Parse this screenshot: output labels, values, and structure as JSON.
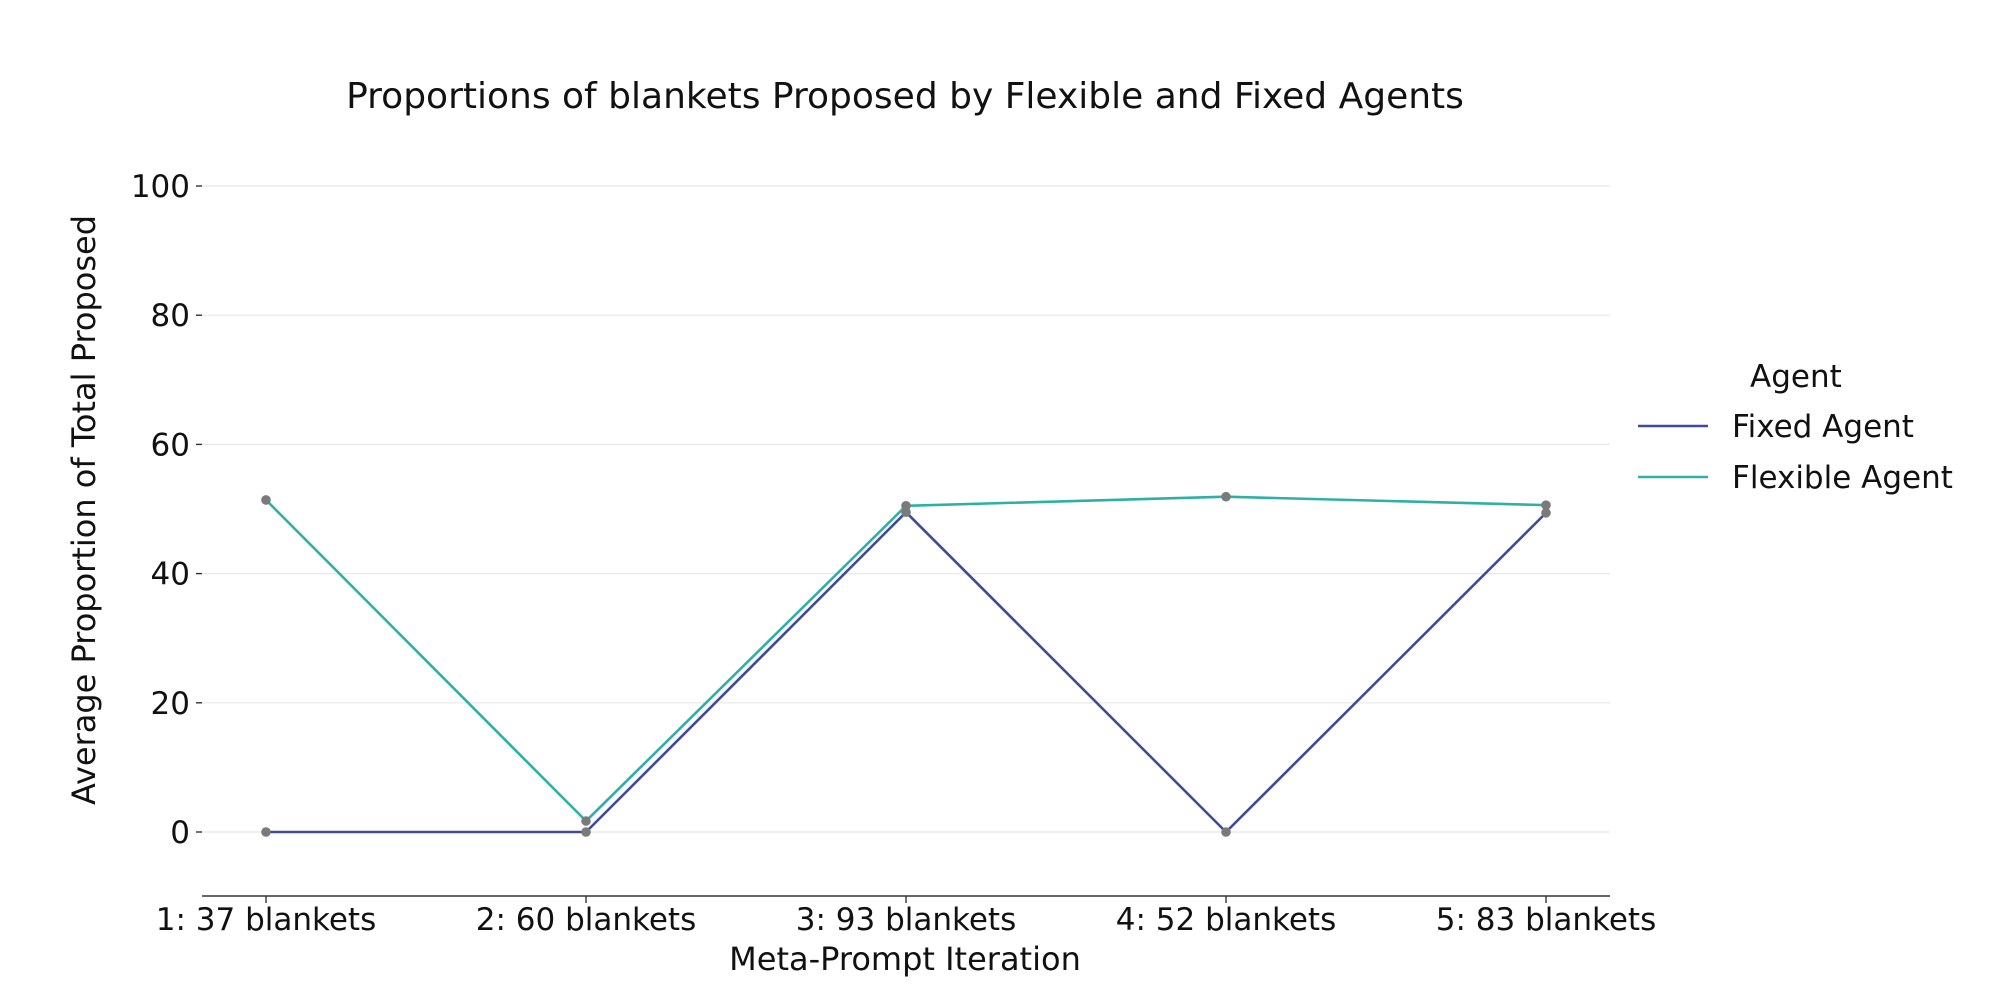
{
  "chart_data": {
    "type": "line",
    "title": "Proportions of blankets Proposed by Flexible and Fixed Agents",
    "xlabel": "Meta-Prompt Iteration",
    "ylabel": "Average Proportion of Total Proposed",
    "categories": [
      "1: 37 blankets",
      "2: 60 blankets",
      "3: 93 blankets",
      "4: 52 blankets",
      "5: 83 blankets"
    ],
    "ylim": [
      -10,
      100
    ],
    "yticks": [
      0,
      20,
      40,
      60,
      80,
      100
    ],
    "grid": true,
    "legend": {
      "title": "Agent",
      "placement": "right"
    },
    "series": [
      {
        "name": "Fixed Agent",
        "color": "#3f4a9a",
        "values": [
          0,
          0,
          49.5,
          0,
          49.4
        ]
      },
      {
        "name": "Flexible Agent",
        "color": "#2fb0a6",
        "values": [
          51.4,
          1.7,
          50.5,
          51.9,
          50.6
        ]
      }
    ],
    "marker_color": "#7a7a7a"
  }
}
